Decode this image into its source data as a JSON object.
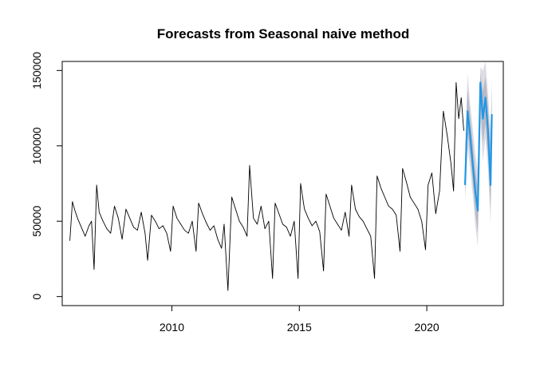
{
  "chart_data": {
    "type": "line",
    "title": "Forecasts from Seasonal naive method",
    "xlabel": "",
    "ylabel": "",
    "xlim": [
      2005.7,
      2023.0
    ],
    "ylim": [
      -6000,
      156000
    ],
    "x_ticks": [
      2010,
      2015,
      2020
    ],
    "x_tick_labels": [
      "2010",
      "2015",
      "2020"
    ],
    "y_ticks": [
      0,
      50000,
      100000,
      150000
    ],
    "y_tick_labels": [
      "0",
      "50000",
      "100000",
      "150000"
    ],
    "grid": false,
    "legend": "none",
    "colors": {
      "history": "#000000",
      "forecast": "#2297e6",
      "interval_80": "#b9b9c6",
      "interval_95": "#dcdce3"
    },
    "series": [
      {
        "x": [
          2006.0,
          2006.1,
          2006.2,
          2006.3,
          2006.45,
          2006.6,
          2006.75,
          2006.85,
          2006.95,
          2007.05,
          2007.15,
          2007.3,
          2007.45,
          2007.6,
          2007.75,
          2007.9,
          2008.05,
          2008.2,
          2008.35,
          2008.5,
          2008.65,
          2008.8,
          2008.95,
          2009.05,
          2009.2,
          2009.35,
          2009.5,
          2009.65,
          2009.8,
          2009.95,
          2010.05,
          2010.2,
          2010.35,
          2010.5,
          2010.65,
          2010.8,
          2010.95,
          2011.05,
          2011.2,
          2011.35,
          2011.5,
          2011.65,
          2011.8,
          2011.95,
          2012.05,
          2012.2,
          2012.35,
          2012.5,
          2012.65,
          2012.8,
          2012.95,
          2013.05,
          2013.2,
          2013.35,
          2013.5,
          2013.65,
          2013.8,
          2013.95,
          2014.05,
          2014.2,
          2014.35,
          2014.5,
          2014.65,
          2014.8,
          2014.95,
          2015.05,
          2015.2,
          2015.35,
          2015.5,
          2015.65,
          2015.8,
          2015.95,
          2016.05,
          2016.2,
          2016.35,
          2016.5,
          2016.65,
          2016.8,
          2016.95,
          2017.05,
          2017.2,
          2017.35,
          2017.5,
          2017.65,
          2017.8,
          2017.95,
          2018.05,
          2018.2,
          2018.35,
          2018.5,
          2018.65,
          2018.8,
          2018.95,
          2019.05,
          2019.2,
          2019.35,
          2019.5,
          2019.65,
          2019.8,
          2019.95,
          2020.05,
          2020.2,
          2020.35,
          2020.5,
          2020.65,
          2020.8,
          2020.95,
          2021.05,
          2021.15,
          2021.25,
          2021.35,
          2021.45
        ],
        "y": [
          37000,
          63000,
          57000,
          52000,
          46000,
          40000,
          47000,
          50000,
          18000,
          74000,
          56000,
          50000,
          45000,
          42000,
          60000,
          52000,
          38000,
          58000,
          52000,
          46000,
          44000,
          56000,
          42000,
          24000,
          54000,
          50000,
          45000,
          47000,
          42000,
          30000,
          60000,
          52000,
          48000,
          44000,
          42000,
          50000,
          30000,
          62000,
          55000,
          49000,
          44000,
          47000,
          38000,
          32000,
          48000,
          4000,
          66000,
          58000,
          50000,
          46000,
          40000,
          87000,
          52000,
          48000,
          60000,
          45000,
          50000,
          12000,
          62000,
          55000,
          48000,
          46000,
          40000,
          50000,
          12000,
          75000,
          58000,
          52000,
          47000,
          50000,
          43000,
          17000,
          68000,
          60000,
          52000,
          48000,
          44000,
          56000,
          40000,
          74000,
          58000,
          53000,
          50000,
          45000,
          40000,
          12000,
          80000,
          72000,
          66000,
          60000,
          58000,
          54000,
          30000,
          85000,
          76000,
          66000,
          62000,
          58000,
          50000,
          31000,
          74000,
          82000,
          55000,
          70000,
          123000,
          107000,
          88000,
          70000,
          142000,
          118000,
          132000,
          110000
        ],
        "name": ""
      },
      {
        "x": [
          2021.5,
          2021.6,
          2021.7,
          2021.8,
          2021.9,
          2022.0,
          2022.1,
          2022.2,
          2022.3,
          2022.4,
          2022.5,
          2022.55
        ],
        "y": [
          74000,
          123000,
          107000,
          88000,
          70000,
          57000,
          142000,
          118000,
          132000,
          110000,
          74000,
          121000
        ],
        "name": ""
      }
    ],
    "forecast_interval": {
      "x": [
        2021.5,
        2021.6,
        2021.7,
        2021.8,
        2021.9,
        2022.0,
        2022.1,
        2022.2,
        2022.3,
        2022.4,
        2022.5,
        2022.55
      ],
      "lower_95": [
        63000,
        98000,
        85000,
        68000,
        48000,
        33000,
        118000,
        90000,
        105000,
        85000,
        48000,
        95000
      ],
      "upper_95": [
        100000,
        148000,
        128000,
        112000,
        95000,
        84000,
        152000,
        150000,
        156000,
        135000,
        110000,
        146000
      ],
      "lower_80": [
        68000,
        108000,
        94000,
        76000,
        56000,
        42000,
        128000,
        102000,
        115000,
        94000,
        58000,
        105000
      ],
      "upper_80": [
        90000,
        138000,
        120000,
        102000,
        84000,
        72000,
        148000,
        136000,
        146000,
        126000,
        100000,
        136000
      ]
    }
  }
}
